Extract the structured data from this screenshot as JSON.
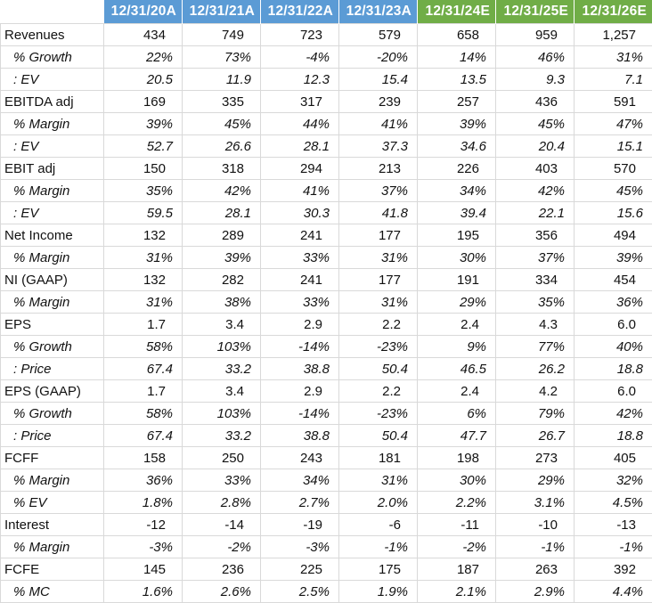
{
  "header": {
    "columns": [
      {
        "label": "12/31/20A",
        "kind": "actual"
      },
      {
        "label": "12/31/21A",
        "kind": "actual"
      },
      {
        "label": "12/31/22A",
        "kind": "actual"
      },
      {
        "label": "12/31/23A",
        "kind": "actual"
      },
      {
        "label": "12/31/24E",
        "kind": "estimate"
      },
      {
        "label": "12/31/25E",
        "kind": "estimate"
      },
      {
        "label": "12/31/26E",
        "kind": "estimate"
      }
    ]
  },
  "colors": {
    "actual_header": "#5b9bd5",
    "estimate_header": "#70ad47",
    "grid": "#d9d9d9"
  },
  "rows": [
    {
      "label": "Revenues",
      "type": "main",
      "values": [
        "434",
        "749",
        "723",
        "579",
        "658",
        "959",
        "1,257"
      ]
    },
    {
      "label": "% Growth",
      "type": "sub",
      "values": [
        "22%",
        "73%",
        "-4%",
        "-20%",
        "14%",
        "46%",
        "31%"
      ]
    },
    {
      "label": ": EV",
      "type": "sub",
      "values": [
        "20.5",
        "11.9",
        "12.3",
        "15.4",
        "13.5",
        "9.3",
        "7.1"
      ]
    },
    {
      "label": "EBITDA adj",
      "type": "main",
      "values": [
        "169",
        "335",
        "317",
        "239",
        "257",
        "436",
        "591"
      ]
    },
    {
      "label": "% Margin",
      "type": "sub",
      "values": [
        "39%",
        "45%",
        "44%",
        "41%",
        "39%",
        "45%",
        "47%"
      ]
    },
    {
      "label": ": EV",
      "type": "sub",
      "values": [
        "52.7",
        "26.6",
        "28.1",
        "37.3",
        "34.6",
        "20.4",
        "15.1"
      ]
    },
    {
      "label": "EBIT adj",
      "type": "main",
      "values": [
        "150",
        "318",
        "294",
        "213",
        "226",
        "403",
        "570"
      ]
    },
    {
      "label": "% Margin",
      "type": "sub",
      "values": [
        "35%",
        "42%",
        "41%",
        "37%",
        "34%",
        "42%",
        "45%"
      ]
    },
    {
      "label": ": EV",
      "type": "sub",
      "values": [
        "59.5",
        "28.1",
        "30.3",
        "41.8",
        "39.4",
        "22.1",
        "15.6"
      ]
    },
    {
      "label": "Net Income",
      "type": "main",
      "values": [
        "132",
        "289",
        "241",
        "177",
        "195",
        "356",
        "494"
      ]
    },
    {
      "label": "% Margin",
      "type": "sub",
      "values": [
        "31%",
        "39%",
        "33%",
        "31%",
        "30%",
        "37%",
        "39%"
      ]
    },
    {
      "label": "NI (GAAP)",
      "type": "main",
      "values": [
        "132",
        "282",
        "241",
        "177",
        "191",
        "334",
        "454"
      ]
    },
    {
      "label": "% Margin",
      "type": "sub",
      "values": [
        "31%",
        "38%",
        "33%",
        "31%",
        "29%",
        "35%",
        "36%"
      ]
    },
    {
      "label": "EPS",
      "type": "main",
      "values": [
        "1.7",
        "3.4",
        "2.9",
        "2.2",
        "2.4",
        "4.3",
        "6.0"
      ]
    },
    {
      "label": "% Growth",
      "type": "sub",
      "values": [
        "58%",
        "103%",
        "-14%",
        "-23%",
        "9%",
        "77%",
        "40%"
      ]
    },
    {
      "label": ": Price",
      "type": "sub",
      "values": [
        "67.4",
        "33.2",
        "38.8",
        "50.4",
        "46.5",
        "26.2",
        "18.8"
      ]
    },
    {
      "label": "EPS (GAAP)",
      "type": "main",
      "values": [
        "1.7",
        "3.4",
        "2.9",
        "2.2",
        "2.4",
        "4.2",
        "6.0"
      ]
    },
    {
      "label": "% Growth",
      "type": "sub",
      "values": [
        "58%",
        "103%",
        "-14%",
        "-23%",
        "6%",
        "79%",
        "42%"
      ]
    },
    {
      "label": ": Price",
      "type": "sub",
      "values": [
        "67.4",
        "33.2",
        "38.8",
        "50.4",
        "47.7",
        "26.7",
        "18.8"
      ]
    },
    {
      "label": "FCFF",
      "type": "main",
      "values": [
        "158",
        "250",
        "243",
        "181",
        "198",
        "273",
        "405"
      ]
    },
    {
      "label": "% Margin",
      "type": "sub",
      "values": [
        "36%",
        "33%",
        "34%",
        "31%",
        "30%",
        "29%",
        "32%"
      ]
    },
    {
      "label": "% EV",
      "type": "sub",
      "values": [
        "1.8%",
        "2.8%",
        "2.7%",
        "2.0%",
        "2.2%",
        "3.1%",
        "4.5%"
      ]
    },
    {
      "label": "Interest",
      "type": "main",
      "values": [
        "-12",
        "-14",
        "-19",
        "-6",
        "-11",
        "-10",
        "-13"
      ]
    },
    {
      "label": "% Margin",
      "type": "sub",
      "values": [
        "-3%",
        "-2%",
        "-3%",
        "-1%",
        "-2%",
        "-1%",
        "-1%"
      ]
    },
    {
      "label": "FCFE",
      "type": "main",
      "values": [
        "145",
        "236",
        "225",
        "175",
        "187",
        "263",
        "392"
      ]
    },
    {
      "label": "% MC",
      "type": "sub",
      "values": [
        "1.6%",
        "2.6%",
        "2.5%",
        "1.9%",
        "2.1%",
        "2.9%",
        "4.4%"
      ]
    }
  ]
}
